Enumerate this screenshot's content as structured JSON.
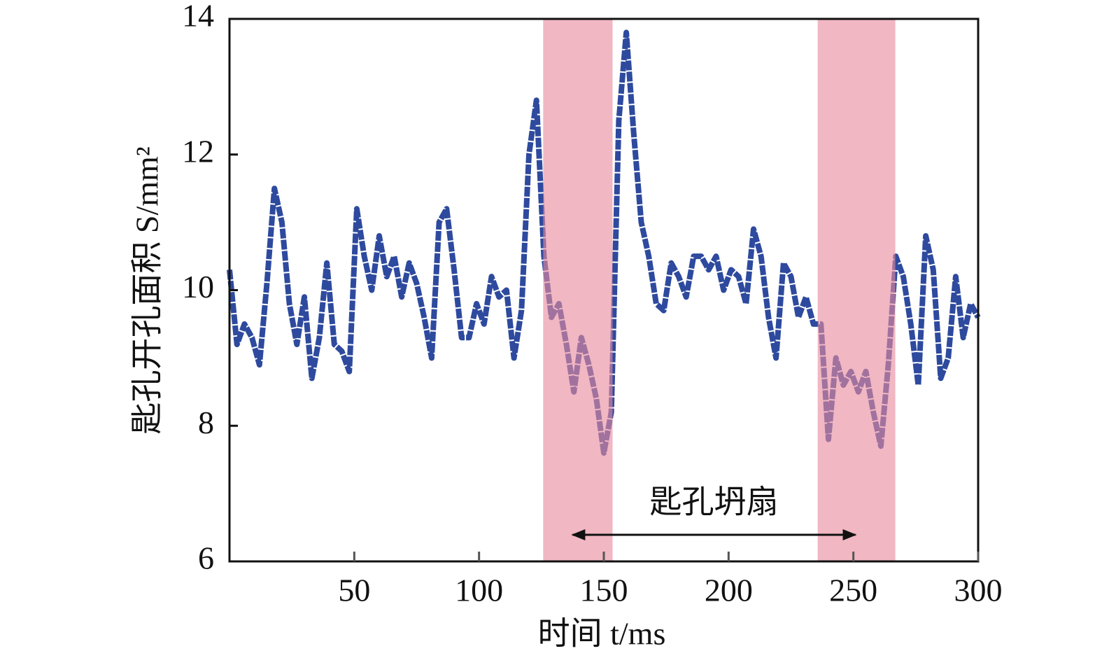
{
  "chart_data": {
    "type": "line",
    "x_label": "时间 t/ms",
    "y_label": "匙孔开孔面积 S/mm²",
    "x": [
      0,
      3,
      6,
      9,
      12,
      15,
      18,
      21,
      24,
      27,
      30,
      33,
      36,
      39,
      42,
      45,
      48,
      51,
      54,
      57,
      60,
      63,
      66,
      69,
      72,
      75,
      78,
      81,
      84,
      87,
      90,
      93,
      96,
      99,
      102,
      105,
      108,
      111,
      114,
      117,
      120,
      123,
      126,
      129,
      132,
      135,
      138,
      141,
      144,
      147,
      150,
      153,
      156,
      159,
      162,
      165,
      168,
      171,
      174,
      177,
      180,
      183,
      186,
      189,
      192,
      195,
      198,
      201,
      204,
      207,
      210,
      213,
      216,
      219,
      222,
      225,
      228,
      231,
      234,
      237,
      240,
      243,
      246,
      249,
      252,
      255,
      258,
      261,
      264,
      267,
      270,
      273,
      276,
      279,
      282,
      285,
      288,
      291,
      294,
      297,
      300
    ],
    "series": [
      {
        "color": "#2e4a9e",
        "values": [
          10.3,
          9.2,
          9.5,
          9.3,
          8.9,
          10.1,
          11.5,
          11.0,
          9.8,
          9.2,
          9.9,
          8.7,
          9.3,
          10.4,
          9.2,
          9.1,
          8.8,
          11.2,
          10.5,
          10.0,
          10.8,
          10.2,
          10.5,
          9.9,
          10.4,
          10.1,
          9.6,
          9.0,
          11.0,
          11.2,
          10.3,
          9.3,
          9.3,
          9.8,
          9.5,
          10.2,
          9.9,
          10.0,
          9.0,
          9.7,
          12.0,
          12.8,
          10.5,
          9.6,
          9.8,
          9.2,
          8.5,
          9.3,
          8.9,
          8.4,
          7.6,
          8.2,
          12.5,
          13.8,
          12.3,
          11.0,
          10.5,
          9.8,
          9.7,
          10.4,
          10.2,
          9.9,
          10.5,
          10.5,
          10.3,
          10.5,
          10.0,
          10.3,
          10.2,
          9.8,
          10.9,
          10.5,
          9.6,
          9.0,
          10.4,
          10.2,
          9.6,
          9.9,
          9.5,
          9.5,
          7.8,
          9.0,
          8.6,
          8.8,
          8.5,
          8.8,
          8.2,
          7.7,
          8.9,
          10.5,
          10.2,
          9.5,
          8.6,
          10.8,
          10.3,
          8.7,
          9.0,
          10.2,
          9.3,
          9.8,
          9.6
        ]
      }
    ],
    "xlim": [
      0,
      300
    ],
    "xticks": [
      50,
      100,
      150,
      200,
      250,
      300
    ],
    "ylim": [
      6,
      14
    ],
    "yticks": [
      6,
      8,
      10,
      12,
      14
    ],
    "shaded_regions": [
      [
        125.7,
        153.5
      ],
      [
        235.7,
        266.8
      ]
    ],
    "shade_color": "#e88a9e",
    "annotation": "匙孔坍扇",
    "arrow": [
      137.5,
      250.8
    ],
    "grid": false
  }
}
